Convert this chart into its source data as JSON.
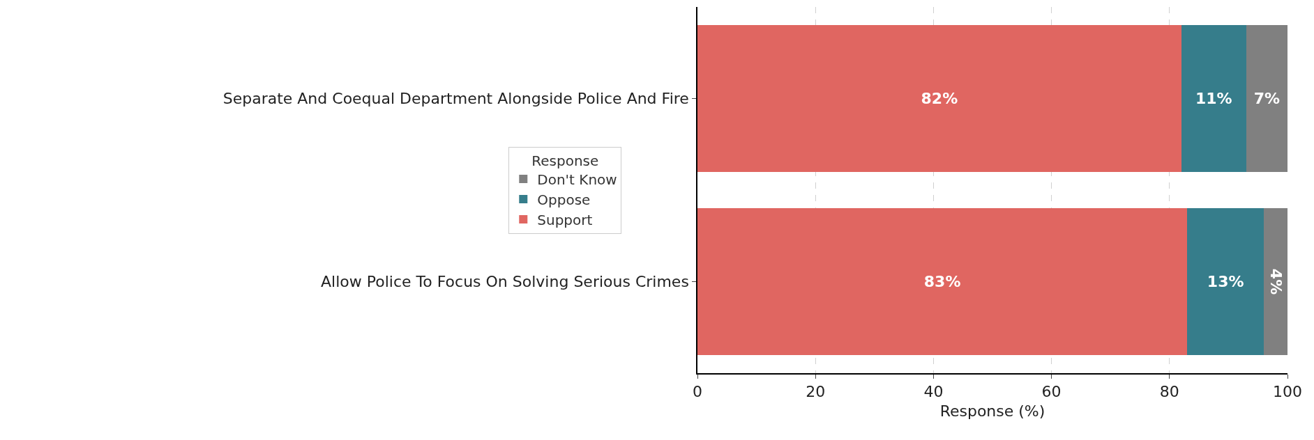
{
  "chart_data": {
    "type": "bar",
    "orientation": "horizontal",
    "stacked": true,
    "categories": [
      "Separate And Coequal Department Alongside Police And Fire",
      "Allow Police To Focus On Solving Serious Crimes"
    ],
    "series": [
      {
        "name": "Support",
        "color": "#e06661",
        "values": [
          82,
          83
        ],
        "value_labels": [
          "82%",
          "83%"
        ]
      },
      {
        "name": "Oppose",
        "color": "#367d8b",
        "values": [
          11,
          13
        ],
        "value_labels": [
          "11%",
          "13%"
        ]
      },
      {
        "name": "Don't Know",
        "color": "#808080",
        "values": [
          7,
          4
        ],
        "value_labels": [
          "7%",
          "4%"
        ]
      }
    ],
    "xlabel": "Response (%)",
    "legend_title": "Response",
    "legend": "left",
    "xlim": [
      0,
      100
    ],
    "xticks": [
      0,
      20,
      40,
      60,
      80,
      100
    ],
    "grid": true
  }
}
